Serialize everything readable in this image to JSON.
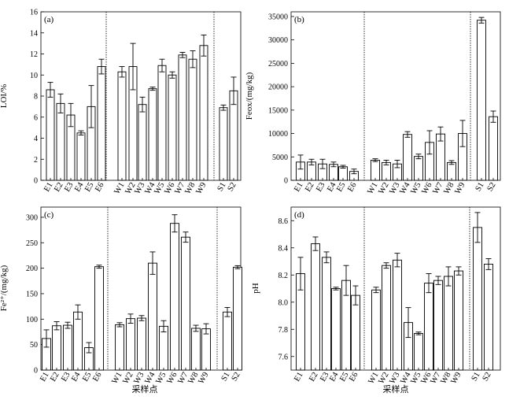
{
  "chart_data": [
    {
      "type": "bar",
      "panel_label": "(a)",
      "ylabel": "LOI/%",
      "xlabel": "",
      "ylim": [
        0,
        16
      ],
      "yticks": [
        0,
        2,
        4,
        6,
        8,
        10,
        12,
        14,
        16
      ],
      "categories": [
        "E1",
        "E2",
        "E3",
        "E4",
        "E5",
        "E6",
        "W1",
        "W2",
        "W3",
        "W4",
        "W5",
        "W6",
        "W7",
        "W8",
        "W9",
        "S1",
        "S2"
      ],
      "values": [
        8.6,
        7.3,
        6.2,
        4.5,
        7.0,
        10.8,
        10.3,
        10.8,
        7.2,
        8.7,
        10.9,
        10.0,
        11.9,
        11.5,
        12.8,
        6.9,
        8.5
      ],
      "errors": [
        0.7,
        0.9,
        1.1,
        0.2,
        2.0,
        0.7,
        0.5,
        2.2,
        0.7,
        0.15,
        0.6,
        0.3,
        0.25,
        0.8,
        1.0,
        0.25,
        1.3
      ]
    },
    {
      "type": "bar",
      "panel_label": "(b)",
      "ylabel": "Feox/(mg/kg)",
      "xlabel": "",
      "ylim": [
        0,
        36000
      ],
      "yticks": [
        0,
        5000,
        10000,
        15000,
        20000,
        25000,
        30000,
        35000
      ],
      "categories": [
        "E1",
        "E2",
        "E3",
        "E4",
        "E5",
        "E6",
        "W1",
        "W2",
        "W3",
        "W4",
        "W5",
        "W6",
        "W7",
        "W8",
        "W9",
        "S1",
        "S2"
      ],
      "values": [
        3900,
        3900,
        3500,
        3400,
        2900,
        1900,
        4300,
        3800,
        3500,
        9800,
        5100,
        8100,
        9900,
        3800,
        10000,
        34200,
        13600
      ],
      "errors": [
        1500,
        600,
        1000,
        500,
        300,
        500,
        300,
        500,
        800,
        600,
        500,
        2500,
        1500,
        400,
        2800,
        600,
        1200
      ]
    },
    {
      "type": "bar",
      "panel_label": "(c)",
      "ylabel": "Fe²⁺/(mg/kg)",
      "xlabel": "采样点",
      "ylim": [
        0,
        320
      ],
      "yticks": [
        0,
        50,
        100,
        150,
        200,
        250,
        300
      ],
      "categories": [
        "E1",
        "E2",
        "E3",
        "E4",
        "E5",
        "E6",
        "W1",
        "W2",
        "W3",
        "W4",
        "W5",
        "W6",
        "W7",
        "W8",
        "W9",
        "S1",
        "S2"
      ],
      "values": [
        62,
        87,
        88,
        114,
        44,
        203,
        89,
        101,
        102,
        210,
        86,
        288,
        261,
        82,
        81,
        114,
        202
      ],
      "errors": [
        17,
        8,
        6,
        14,
        10,
        3,
        4,
        9,
        5,
        22,
        11,
        17,
        10,
        6,
        10,
        9,
        3
      ]
    },
    {
      "type": "bar",
      "panel_label": "(d)",
      "ylabel": "pH",
      "xlabel": "采样点",
      "ylim": [
        7.5,
        8.7
      ],
      "yticks": [
        "7.6",
        "7.8",
        "8.0",
        "8.2",
        "8.4",
        "8.6"
      ],
      "categories": [
        "E1",
        "E2",
        "E3",
        "E4",
        "E5",
        "E6",
        "W1",
        "W2",
        "W3",
        "W4",
        "W5",
        "W6",
        "W7",
        "W8",
        "W9",
        "S1",
        "S2"
      ],
      "values": [
        8.21,
        8.43,
        8.33,
        8.1,
        8.16,
        8.05,
        8.09,
        8.27,
        8.31,
        7.85,
        7.77,
        8.14,
        8.16,
        8.19,
        8.23,
        8.55,
        8.28
      ],
      "errors": [
        0.12,
        0.05,
        0.04,
        0.01,
        0.11,
        0.07,
        0.02,
        0.02,
        0.05,
        0.11,
        0.01,
        0.07,
        0.03,
        0.07,
        0.03,
        0.11,
        0.04
      ]
    }
  ]
}
